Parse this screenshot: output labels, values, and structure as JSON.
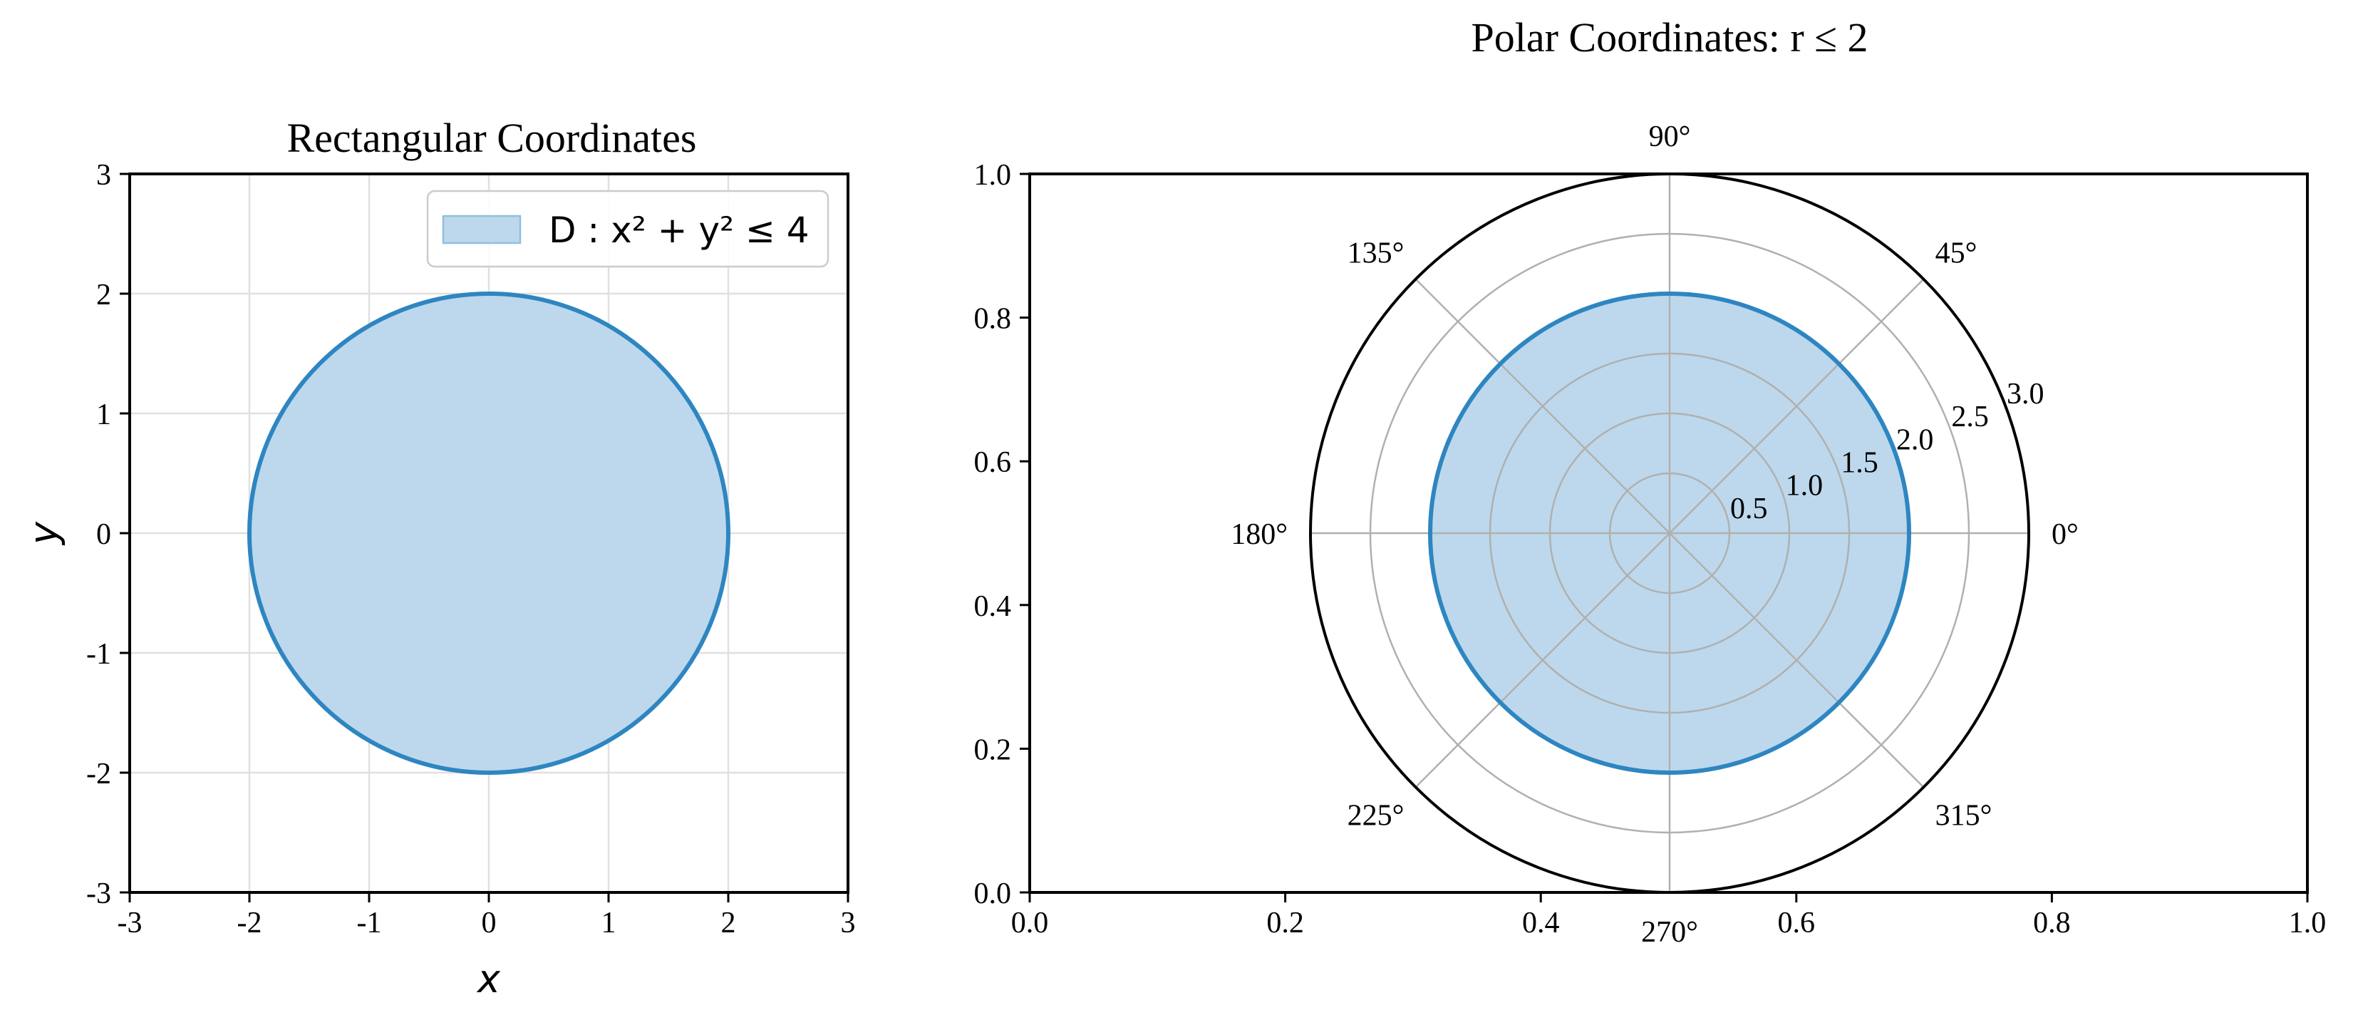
{
  "colors": {
    "region_fill": "#bdd8ec",
    "boundary": "#2e86c1",
    "grid": "#e0e0e0",
    "polar_grid": "#b0b0b0"
  },
  "chart_data": [
    {
      "type": "area",
      "title": "Rectangular Coordinates",
      "xlabel": "x",
      "ylabel": "y",
      "xlim": [
        -3,
        3
      ],
      "ylim": [
        -3,
        3
      ],
      "xticks": [
        "-3",
        "-2",
        "-1",
        "0",
        "1",
        "2",
        "3"
      ],
      "yticks": [
        "-3",
        "-2",
        "-1",
        "0",
        "1",
        "2",
        "3"
      ],
      "grid": true,
      "legend": {
        "placement": "upper-right",
        "entries": [
          "D : x² + y² ≤ 4"
        ]
      },
      "region": {
        "shape": "disk",
        "center": [
          0,
          0
        ],
        "radius": 2
      }
    },
    {
      "type": "area",
      "title": "Polar Coordinates: r ≤ 2",
      "frame_xlim": [
        0,
        1
      ],
      "frame_ylim": [
        0,
        1
      ],
      "frame_xticks": [
        "0.0",
        "0.2",
        "0.4",
        "0.6",
        "0.8",
        "1.0"
      ],
      "frame_yticks": [
        "0.0",
        "0.2",
        "0.4",
        "0.6",
        "0.8",
        "1.0"
      ],
      "rlim": [
        0,
        3
      ],
      "rticks": [
        "0.5",
        "1.0",
        "1.5",
        "2.0",
        "2.5",
        "3.0"
      ],
      "theta_ticks": [
        "0°",
        "45°",
        "90°",
        "135°",
        "180°",
        "225°",
        "270°",
        "315°"
      ],
      "grid": true,
      "region": {
        "shape": "disk",
        "r_max": 2
      }
    }
  ]
}
